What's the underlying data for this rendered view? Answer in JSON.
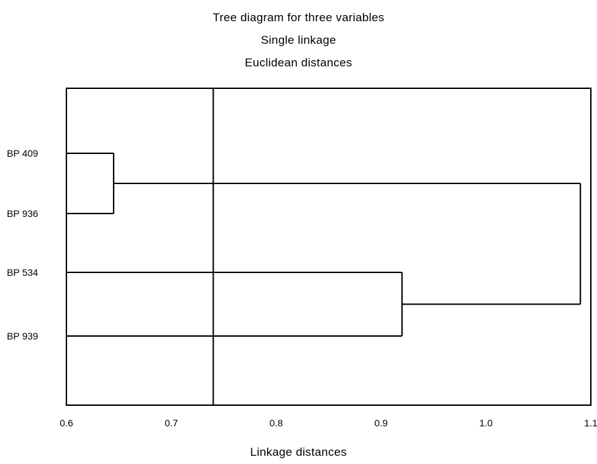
{
  "chart_data": {
    "type": "dendrogram",
    "title": "Tree diagram for three variables",
    "subtitles": [
      "Single linkage",
      "Euclidean distances"
    ],
    "xlabel": "Linkage distances",
    "ylabel": "",
    "xlim": [
      0.6,
      1.1
    ],
    "x_ticks": [
      0.6,
      0.7,
      0.8,
      0.9,
      1.0,
      1.1
    ],
    "x_tick_labels": [
      "0.6",
      "0.7",
      "0.8",
      "0.9",
      "1.0",
      "1.1"
    ],
    "leaves": [
      "BP 409",
      "BP 936",
      "BP 534",
      "BP 939"
    ],
    "merges": [
      {
        "members": [
          "BP 409",
          "BP 936"
        ],
        "distance": 0.645
      },
      {
        "members": [
          "BP 534",
          "BP 939"
        ],
        "distance": 0.92
      },
      {
        "members": [
          "BP 409",
          "BP 936",
          "BP 534",
          "BP 939"
        ],
        "distance": 1.09
      }
    ],
    "reference_line": 0.74,
    "grid": false,
    "legend": "none"
  }
}
